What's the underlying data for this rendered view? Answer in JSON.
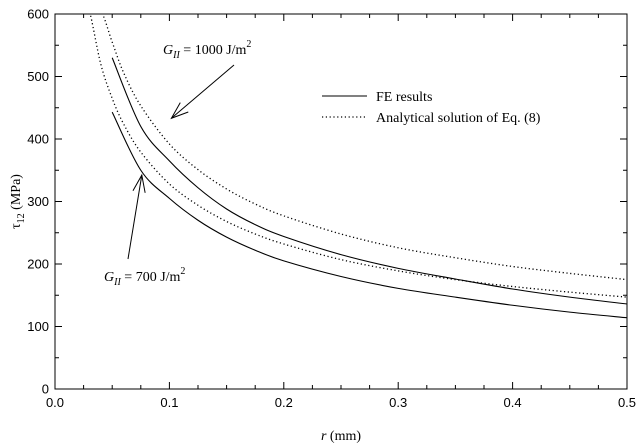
{
  "chart_data": {
    "type": "line",
    "title": "",
    "xlabel": {
      "symbol": "r",
      "unit": " (mm)"
    },
    "ylabel": {
      "symbol": "τ",
      "subscript": "12",
      "unit": " (MPa)"
    },
    "xlim": [
      0.0,
      0.5
    ],
    "ylim": [
      0,
      600
    ],
    "xticks": [
      0.0,
      0.1,
      0.2,
      0.3,
      0.4,
      0.5
    ],
    "xtick_labels": [
      "0.0",
      "0.1",
      "0.2",
      "0.3",
      "0.4",
      "0.5"
    ],
    "yticks": [
      0,
      100,
      200,
      300,
      400,
      500,
      600
    ],
    "ytick_labels": [
      "0",
      "100",
      "200",
      "300",
      "400",
      "500",
      "600"
    ],
    "grid": false,
    "legend": {
      "placement": "top-right",
      "entries": [
        {
          "label": "FE results",
          "style": "solid"
        },
        {
          "label": "Analytical solution of Eq. (8)",
          "style": "dotted"
        }
      ]
    },
    "annotations": [
      {
        "symbol": "G",
        "subscript": "II",
        "text": " = 1000 J/m",
        "superscript": "2",
        "points_to": {
          "x": 0.1,
          "y": 430
        }
      },
      {
        "symbol": "G",
        "subscript": "II",
        "text": " = 700 J/m",
        "superscript": "2",
        "points_to": {
          "x": 0.075,
          "y": 355
        }
      }
    ],
    "series": [
      {
        "style": "solid",
        "x": [
          0.05,
          0.075,
          0.1,
          0.125,
          0.15,
          0.175,
          0.2,
          0.25,
          0.3,
          0.35,
          0.4,
          0.45,
          0.5
        ],
        "y": [
          530,
          420,
          365,
          322,
          288,
          263,
          244,
          215,
          193,
          176,
          160,
          147,
          136
        ]
      },
      {
        "style": "solid",
        "x": [
          0.05,
          0.075,
          0.1,
          0.125,
          0.15,
          0.175,
          0.2,
          0.25,
          0.3,
          0.35,
          0.4,
          0.45,
          0.5
        ],
        "y": [
          443,
          350,
          305,
          270,
          243,
          222,
          205,
          180,
          161,
          147,
          134,
          123,
          114
        ]
      },
      {
        "style": "dotted",
        "x": [
          0.03,
          0.04,
          0.05,
          0.06,
          0.075,
          0.1,
          0.125,
          0.15,
          0.175,
          0.2,
          0.25,
          0.3,
          0.35,
          0.4,
          0.45,
          0.5
        ],
        "y": [
          605,
          605,
          555,
          506,
          453,
          392,
          351,
          320,
          296,
          277,
          248,
          226,
          210,
          196,
          185,
          175
        ]
      },
      {
        "style": "dotted",
        "x": [
          0.025,
          0.03,
          0.04,
          0.05,
          0.06,
          0.075,
          0.1,
          0.125,
          0.15,
          0.175,
          0.2,
          0.25,
          0.3,
          0.35,
          0.4,
          0.45,
          0.5
        ],
        "y": [
          605,
          605,
          520,
          465,
          424,
          379,
          328,
          294,
          268,
          248,
          232,
          207,
          189,
          175,
          164,
          155,
          147
        ]
      }
    ]
  }
}
